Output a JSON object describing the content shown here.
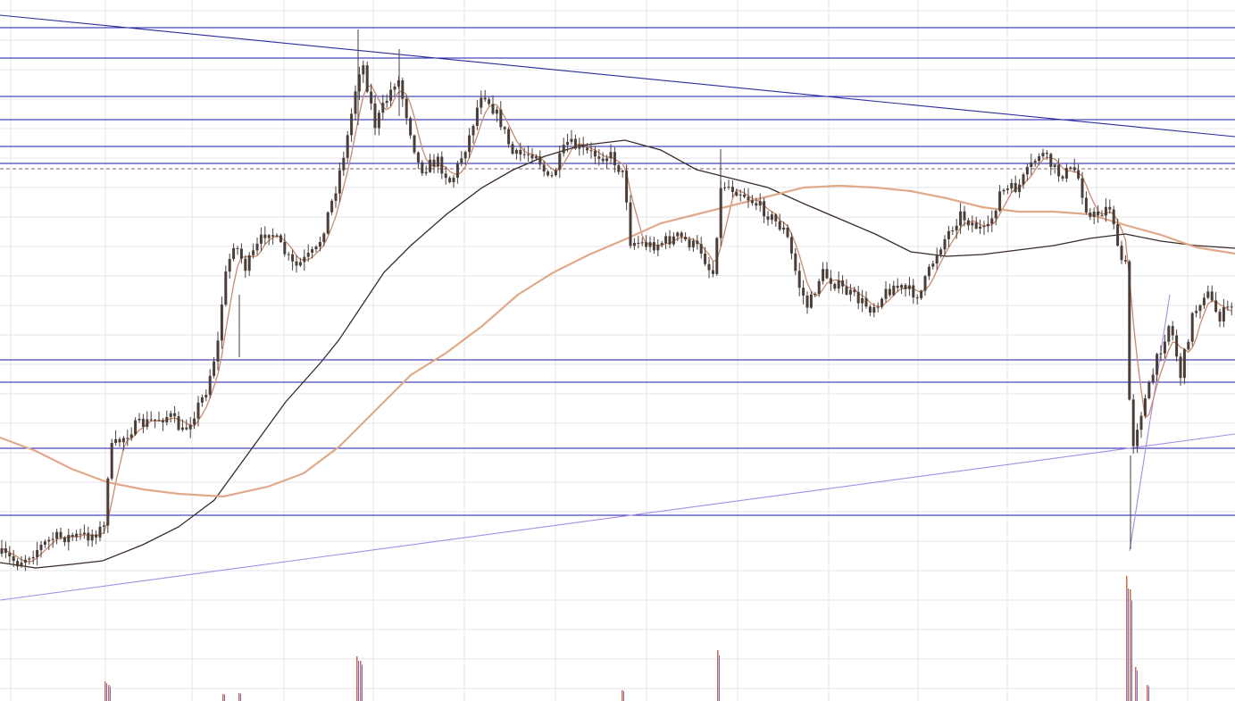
{
  "colors": {
    "background": "#ffffff",
    "grid": "#e6e6ea",
    "level_line": "#1a1aa8",
    "trend_down": "#2b2b9c",
    "trend_up": "#a98ce6",
    "dashed_level": "#8a6262",
    "candle": "#4a3e38",
    "ma_short": "#c98a6e",
    "ma_long": "#3a2a2a",
    "ma_mid": "#e0aa8a",
    "volume_red": "#d4684a",
    "volume_blue": "#6a6ad0"
  },
  "chart_data": {
    "type": "candlestick",
    "y_axis_shown": false,
    "x_axis_shown": false,
    "legend": "none",
    "grid": true,
    "ylim": [
      0,
      785
    ],
    "horizontal_levels": [
      31,
      65,
      108,
      134,
      164,
      183,
      403,
      428,
      502,
      577
    ],
    "dashed_level": 189,
    "trendlines": [
      {
        "name": "descending-resistance",
        "x": [
          0,
          1383
        ],
        "y": [
          17,
          153
        ]
      },
      {
        "name": "ascending-support",
        "x": [
          0,
          1383
        ],
        "y": [
          672,
          486
        ]
      },
      {
        "name": "rebound-line",
        "x": [
          1265,
          1310
        ],
        "y": [
          617,
          330
        ]
      }
    ],
    "key_points": [
      {
        "x": 0,
        "y": 620
      },
      {
        "x": 20,
        "y": 630
      },
      {
        "x": 60,
        "y": 602
      },
      {
        "x": 100,
        "y": 600
      },
      {
        "x": 118,
        "y": 590
      },
      {
        "x": 122,
        "y": 505
      },
      {
        "x": 150,
        "y": 478
      },
      {
        "x": 190,
        "y": 465
      },
      {
        "x": 205,
        "y": 485
      },
      {
        "x": 230,
        "y": 440
      },
      {
        "x": 245,
        "y": 380
      },
      {
        "x": 250,
        "y": 320
      },
      {
        "x": 262,
        "y": 270
      },
      {
        "x": 275,
        "y": 300
      },
      {
        "x": 300,
        "y": 255
      },
      {
        "x": 330,
        "y": 300
      },
      {
        "x": 355,
        "y": 280
      },
      {
        "x": 375,
        "y": 215
      },
      {
        "x": 390,
        "y": 150
      },
      {
        "x": 398,
        "y": 100
      },
      {
        "x": 405,
        "y": 65
      },
      {
        "x": 420,
        "y": 140
      },
      {
        "x": 445,
        "y": 85
      },
      {
        "x": 470,
        "y": 190
      },
      {
        "x": 490,
        "y": 180
      },
      {
        "x": 505,
        "y": 205
      },
      {
        "x": 525,
        "y": 155
      },
      {
        "x": 540,
        "y": 100
      },
      {
        "x": 560,
        "y": 135
      },
      {
        "x": 575,
        "y": 175
      },
      {
        "x": 600,
        "y": 170
      },
      {
        "x": 615,
        "y": 205
      },
      {
        "x": 635,
        "y": 160
      },
      {
        "x": 660,
        "y": 172
      },
      {
        "x": 685,
        "y": 175
      },
      {
        "x": 700,
        "y": 200
      },
      {
        "x": 705,
        "y": 270
      },
      {
        "x": 730,
        "y": 275
      },
      {
        "x": 760,
        "y": 265
      },
      {
        "x": 785,
        "y": 280
      },
      {
        "x": 798,
        "y": 310
      },
      {
        "x": 808,
        "y": 205
      },
      {
        "x": 830,
        "y": 215
      },
      {
        "x": 855,
        "y": 235
      },
      {
        "x": 880,
        "y": 260
      },
      {
        "x": 895,
        "y": 320
      },
      {
        "x": 905,
        "y": 345
      },
      {
        "x": 920,
        "y": 305
      },
      {
        "x": 945,
        "y": 325
      },
      {
        "x": 975,
        "y": 345
      },
      {
        "x": 1000,
        "y": 320
      },
      {
        "x": 1030,
        "y": 330
      },
      {
        "x": 1050,
        "y": 280
      },
      {
        "x": 1075,
        "y": 240
      },
      {
        "x": 1105,
        "y": 262
      },
      {
        "x": 1120,
        "y": 215
      },
      {
        "x": 1140,
        "y": 210
      },
      {
        "x": 1165,
        "y": 170
      },
      {
        "x": 1185,
        "y": 195
      },
      {
        "x": 1205,
        "y": 190
      },
      {
        "x": 1220,
        "y": 245
      },
      {
        "x": 1245,
        "y": 230
      },
      {
        "x": 1252,
        "y": 285
      },
      {
        "x": 1262,
        "y": 300
      },
      {
        "x": 1266,
        "y": 510
      },
      {
        "x": 1275,
        "y": 470
      },
      {
        "x": 1285,
        "y": 440
      },
      {
        "x": 1298,
        "y": 395
      },
      {
        "x": 1310,
        "y": 360
      },
      {
        "x": 1322,
        "y": 420
      },
      {
        "x": 1335,
        "y": 355
      },
      {
        "x": 1350,
        "y": 325
      },
      {
        "x": 1365,
        "y": 355
      },
      {
        "x": 1383,
        "y": 340
      }
    ],
    "moving_averages": [
      {
        "name": "ma-long",
        "points": [
          [
            0,
            630
          ],
          [
            40,
            636
          ],
          [
            80,
            632
          ],
          [
            115,
            628
          ],
          [
            160,
            610
          ],
          [
            200,
            590
          ],
          [
            240,
            560
          ],
          [
            280,
            505
          ],
          [
            320,
            450
          ],
          [
            360,
            405
          ],
          [
            380,
            380
          ],
          [
            400,
            350
          ],
          [
            430,
            305
          ],
          [
            460,
            275
          ],
          [
            500,
            240
          ],
          [
            540,
            210
          ],
          [
            575,
            190
          ],
          [
            610,
            175
          ],
          [
            650,
            163
          ],
          [
            700,
            157
          ],
          [
            740,
            168
          ],
          [
            780,
            190
          ],
          [
            820,
            200
          ],
          [
            860,
            210
          ],
          [
            900,
            228
          ],
          [
            940,
            245
          ],
          [
            980,
            262
          ],
          [
            1020,
            282
          ],
          [
            1060,
            287
          ],
          [
            1100,
            285
          ],
          [
            1140,
            280
          ],
          [
            1180,
            275
          ],
          [
            1220,
            267
          ],
          [
            1260,
            262
          ],
          [
            1300,
            270
          ],
          [
            1340,
            275
          ],
          [
            1383,
            278
          ]
        ]
      },
      {
        "name": "ma-mid",
        "points": [
          [
            0,
            490
          ],
          [
            40,
            505
          ],
          [
            80,
            525
          ],
          [
            120,
            540
          ],
          [
            160,
            548
          ],
          [
            200,
            553
          ],
          [
            250,
            556
          ],
          [
            300,
            545
          ],
          [
            340,
            530
          ],
          [
            380,
            500
          ],
          [
            420,
            460
          ],
          [
            460,
            420
          ],
          [
            500,
            395
          ],
          [
            540,
            365
          ],
          [
            580,
            330
          ],
          [
            620,
            305
          ],
          [
            660,
            285
          ],
          [
            700,
            268
          ],
          [
            740,
            250
          ],
          [
            780,
            240
          ],
          [
            820,
            230
          ],
          [
            860,
            220
          ],
          [
            900,
            210
          ],
          [
            940,
            208
          ],
          [
            980,
            210
          ],
          [
            1020,
            214
          ],
          [
            1060,
            222
          ],
          [
            1100,
            232
          ],
          [
            1140,
            237
          ],
          [
            1180,
            237
          ],
          [
            1220,
            240
          ],
          [
            1260,
            252
          ],
          [
            1300,
            263
          ],
          [
            1340,
            277
          ],
          [
            1383,
            284
          ]
        ]
      }
    ],
    "volume_spikes": [
      {
        "x": 118,
        "h": 22
      },
      {
        "x": 122,
        "h": 18
      },
      {
        "x": 250,
        "h": 8
      },
      {
        "x": 268,
        "h": 9
      },
      {
        "x": 400,
        "h": 50
      },
      {
        "x": 404,
        "h": 45
      },
      {
        "x": 697,
        "h": 12
      },
      {
        "x": 804,
        "h": 57
      },
      {
        "x": 1262,
        "h": 140
      },
      {
        "x": 1266,
        "h": 125
      },
      {
        "x": 1272,
        "h": 38
      },
      {
        "x": 1285,
        "h": 18
      }
    ]
  }
}
